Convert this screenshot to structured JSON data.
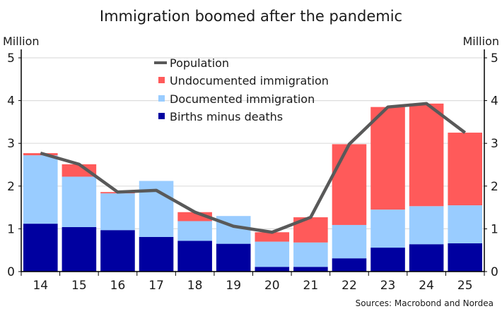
{
  "chart_data": {
    "type": "bar",
    "stacked": true,
    "title": "Immigration boomed after the pandemic",
    "ylabel_left": "Million",
    "ylabel_right": "Million",
    "ylim": [
      0,
      5.2
    ],
    "yticks": [
      0,
      1,
      2,
      3,
      4,
      5
    ],
    "grid": true,
    "legend_position": "top-center",
    "categories": [
      "14",
      "15",
      "16",
      "17",
      "18",
      "19",
      "20",
      "21",
      "22",
      "23",
      "24",
      "25"
    ],
    "series": [
      {
        "name": "Births minus deaths",
        "kind": "bar",
        "color": "#0000A0",
        "values": [
          1.12,
          1.04,
          0.97,
          0.81,
          0.72,
          0.65,
          0.11,
          0.11,
          0.31,
          0.56,
          0.64,
          0.66
        ]
      },
      {
        "name": "Documented immigration",
        "kind": "bar",
        "color": "#99CCFF",
        "values": [
          1.6,
          1.18,
          0.86,
          1.31,
          0.46,
          0.65,
          0.59,
          0.57,
          0.78,
          0.89,
          0.89,
          0.89
        ]
      },
      {
        "name": "Undocumented immigration",
        "kind": "bar",
        "color": "#FF5A5A",
        "values": [
          0.05,
          0.29,
          0.03,
          0.0,
          0.21,
          0.0,
          0.22,
          0.59,
          1.89,
          2.4,
          2.4,
          1.7
        ]
      },
      {
        "name": "Population",
        "kind": "line",
        "color": "#595959",
        "values": [
          2.77,
          2.51,
          1.86,
          1.9,
          1.39,
          1.06,
          0.92,
          1.27,
          2.98,
          3.85,
          3.93,
          3.25
        ]
      }
    ],
    "legend": [
      "Population",
      "Undocumented immigration",
      "Documented immigration",
      "Births minus deaths"
    ],
    "source": "Sources: Macrobond and Nordea"
  }
}
